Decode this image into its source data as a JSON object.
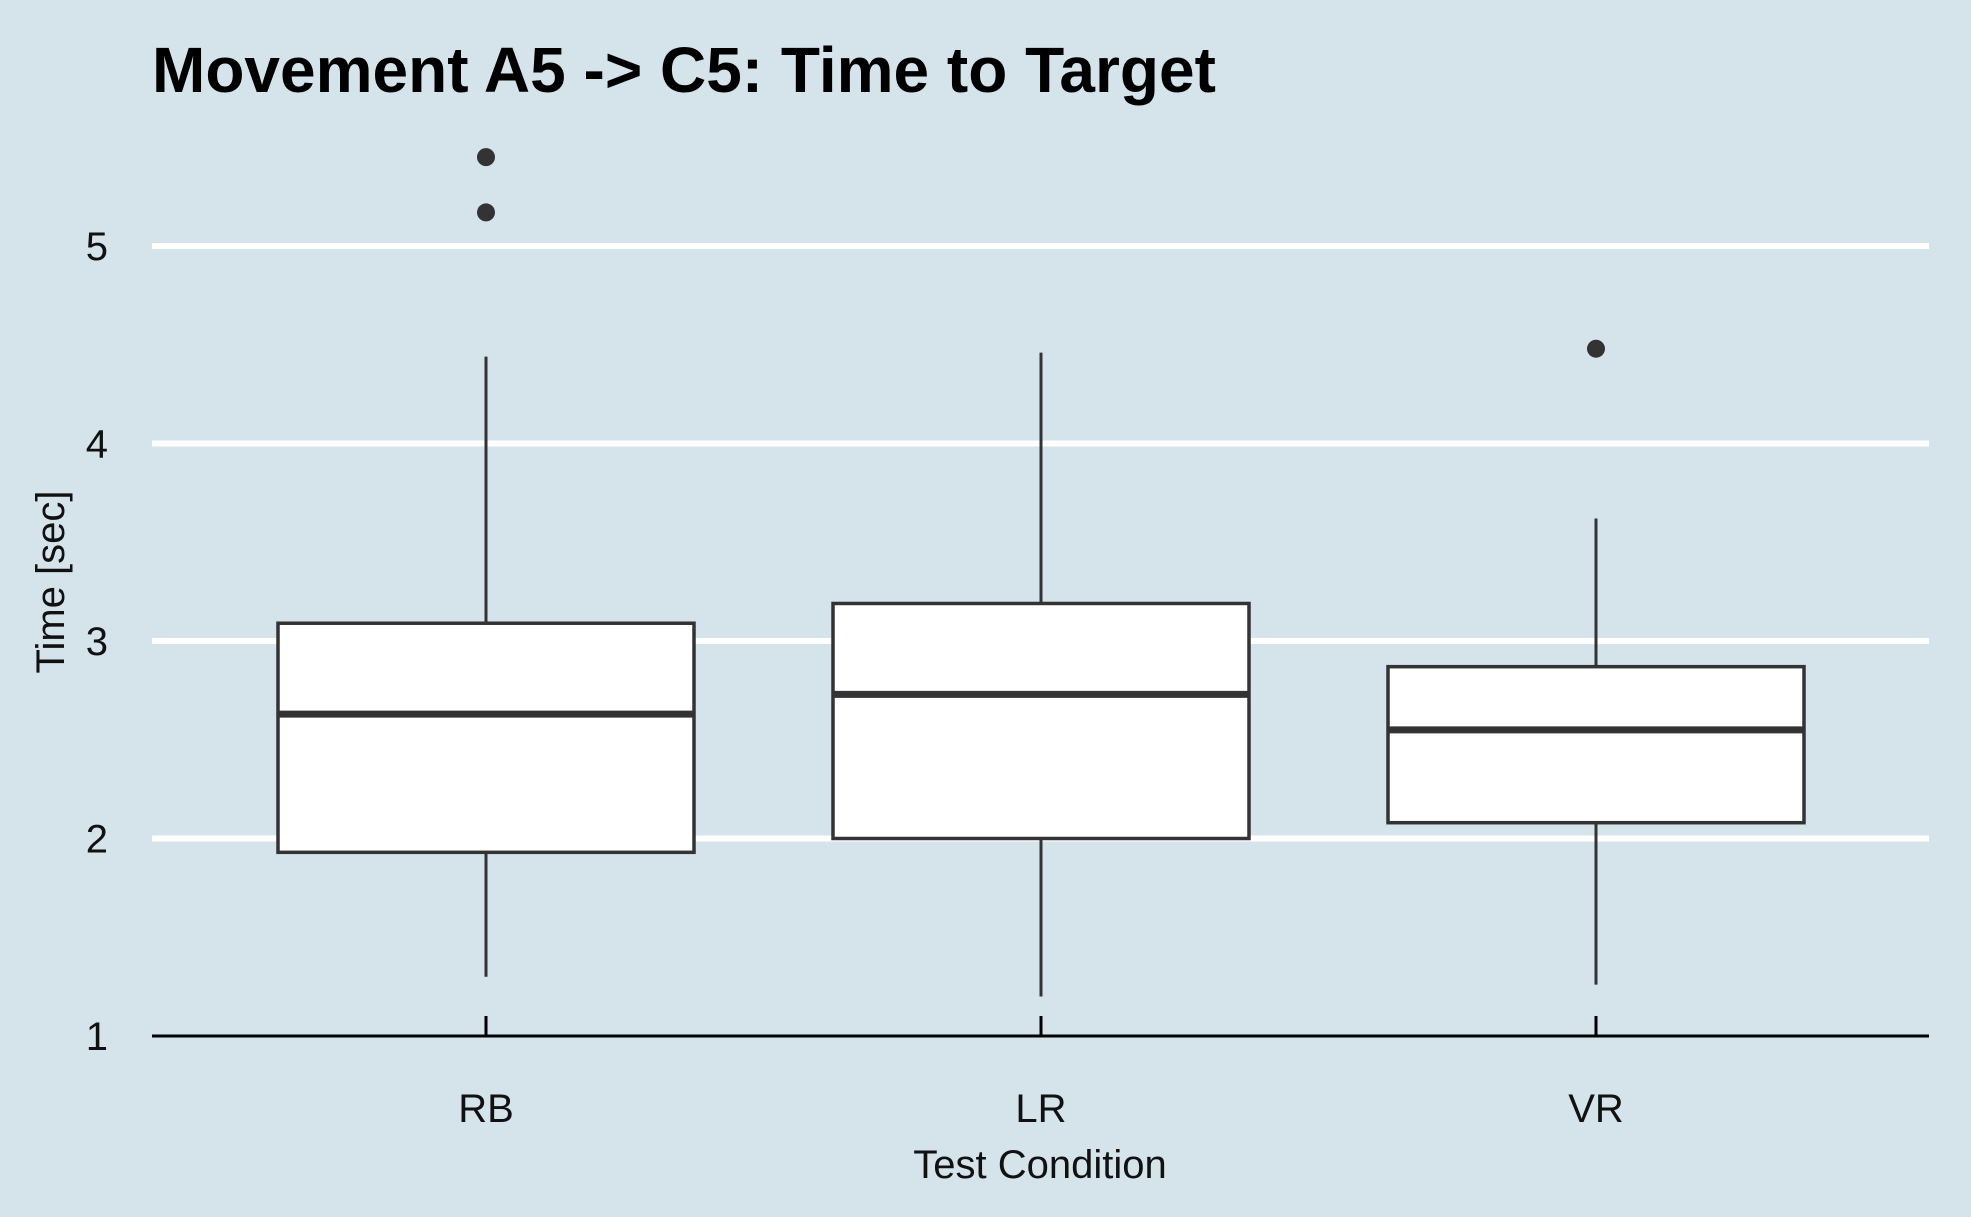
{
  "chart_data": {
    "type": "boxplot",
    "title": "Movement A5 -> C5: Time to Target",
    "xlabel": "Test Condition",
    "ylabel": "Time [sec]",
    "categories": [
      "RB",
      "LR",
      "VR"
    ],
    "ylim": [
      1,
      5.5
    ],
    "yticks": [
      1,
      2,
      3,
      4,
      5
    ],
    "ytick_labels": [
      "1",
      "2",
      "3",
      "4",
      "5"
    ],
    "grid": "horizontal",
    "colors": {
      "background": "#d5e4eb",
      "grid": "#ffffff",
      "box_fill": "#ffffff",
      "box_stroke": "#333333"
    },
    "boxes": [
      {
        "category": "RB",
        "whisker_low": 1.3,
        "q1": 1.93,
        "median": 2.63,
        "q3": 3.09,
        "whisker_high": 4.44,
        "outliers": [
          5.17,
          5.45
        ]
      },
      {
        "category": "LR",
        "whisker_low": 1.2,
        "q1": 2.0,
        "median": 2.73,
        "q3": 3.19,
        "whisker_high": 4.46,
        "outliers": []
      },
      {
        "category": "VR",
        "whisker_low": 1.26,
        "q1": 2.08,
        "median": 2.55,
        "q3": 2.87,
        "whisker_high": 3.62,
        "outliers": [
          4.48
        ]
      }
    ]
  }
}
